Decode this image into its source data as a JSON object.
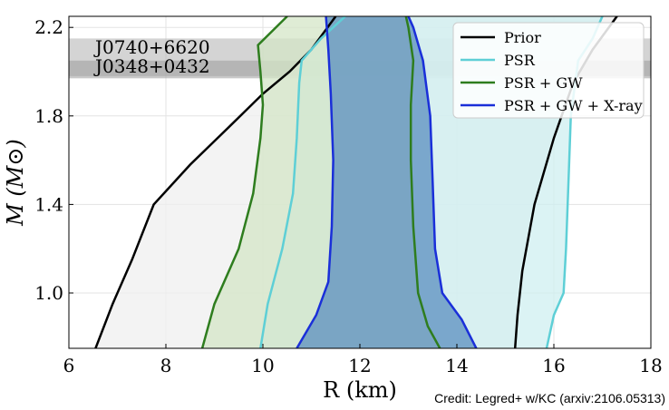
{
  "chart_data": {
    "type": "area",
    "xlabel": "R (km)",
    "ylabel": "M (M⊙)",
    "xlim": [
      6,
      18
    ],
    "ylim": [
      0.75,
      2.25
    ],
    "xticks": [
      6,
      8,
      10,
      12,
      14,
      16,
      18
    ],
    "yticks": [
      1.0,
      1.4,
      1.8,
      2.2
    ],
    "xtick_labels": [
      "6",
      "8",
      "10",
      "12",
      "14",
      "16",
      "18"
    ],
    "ytick_labels": [
      "1.0",
      "1.4",
      "1.8",
      "2.2"
    ],
    "grid": true,
    "legend_position": "top-right",
    "bands": [
      {
        "label": "J0740+6620",
        "mass_range": [
          1.98,
          2.15
        ],
        "color": "#b0b0b0"
      },
      {
        "label": "J0348+0432",
        "mass_range": [
          1.97,
          2.05
        ],
        "color": "#9a9a9a"
      }
    ],
    "series": [
      {
        "name": "Prior",
        "color": "#000000",
        "fill": "#efefef",
        "left": [
          [
            6.55,
            0.75
          ],
          [
            6.9,
            0.95
          ],
          [
            7.3,
            1.15
          ],
          [
            7.75,
            1.4
          ],
          [
            8.5,
            1.58
          ],
          [
            9.3,
            1.75
          ],
          [
            10.0,
            1.9
          ],
          [
            10.55,
            2.0
          ],
          [
            11.0,
            2.1
          ],
          [
            11.5,
            2.25
          ]
        ],
        "right": [
          [
            15.2,
            0.75
          ],
          [
            15.25,
            0.9
          ],
          [
            15.35,
            1.1
          ],
          [
            15.6,
            1.4
          ],
          [
            16.0,
            1.7
          ],
          [
            16.4,
            1.95
          ],
          [
            16.8,
            2.1
          ],
          [
            17.3,
            2.25
          ]
        ]
      },
      {
        "name": "PSR",
        "color": "#5ecfd6",
        "fill": "#cfeff0",
        "left": [
          [
            9.95,
            0.75
          ],
          [
            10.1,
            0.95
          ],
          [
            10.4,
            1.2
          ],
          [
            10.62,
            1.45
          ],
          [
            10.7,
            1.7
          ],
          [
            10.75,
            1.95
          ],
          [
            10.8,
            2.05
          ],
          [
            11.2,
            2.15
          ],
          [
            11.7,
            2.25
          ]
        ],
        "right": [
          [
            15.85,
            0.75
          ],
          [
            16.0,
            0.9
          ],
          [
            16.2,
            1.0
          ],
          [
            16.25,
            1.2
          ],
          [
            16.3,
            1.5
          ],
          [
            16.35,
            1.8
          ],
          [
            16.5,
            2.05
          ],
          [
            16.8,
            2.15
          ],
          [
            17.0,
            2.25
          ]
        ]
      },
      {
        "name": "PSR + GW",
        "color": "#2e7d1e",
        "fill": "#d4e6c7",
        "left": [
          [
            8.75,
            0.75
          ],
          [
            9.0,
            0.95
          ],
          [
            9.5,
            1.2
          ],
          [
            9.8,
            1.45
          ],
          [
            9.95,
            1.7
          ],
          [
            10.0,
            1.85
          ],
          [
            9.95,
            2.0
          ],
          [
            9.9,
            2.12
          ],
          [
            10.5,
            2.25
          ]
        ],
        "right": [
          [
            13.65,
            0.75
          ],
          [
            13.4,
            0.85
          ],
          [
            13.2,
            1.0
          ],
          [
            13.1,
            1.3
          ],
          [
            13.05,
            1.6
          ],
          [
            13.05,
            1.85
          ],
          [
            13.1,
            2.05
          ],
          [
            13.0,
            2.2
          ],
          [
            12.95,
            2.25
          ]
        ]
      },
      {
        "name": "PSR + GW + X-ray",
        "color": "#1a2fd9",
        "fill": "#5b8fbf",
        "left": [
          [
            10.7,
            0.75
          ],
          [
            11.1,
            0.9
          ],
          [
            11.35,
            1.05
          ],
          [
            11.42,
            1.3
          ],
          [
            11.45,
            1.6
          ],
          [
            11.4,
            1.9
          ],
          [
            11.35,
            2.1
          ],
          [
            11.3,
            2.25
          ]
        ],
        "right": [
          [
            14.4,
            0.75
          ],
          [
            14.1,
            0.88
          ],
          [
            13.7,
            1.0
          ],
          [
            13.55,
            1.2
          ],
          [
            13.5,
            1.5
          ],
          [
            13.45,
            1.8
          ],
          [
            13.3,
            2.05
          ],
          [
            13.1,
            2.2
          ],
          [
            13.0,
            2.25
          ]
        ]
      }
    ]
  },
  "credit": "Credit: Legred+ w/KC (arxiv:2106.05313)"
}
